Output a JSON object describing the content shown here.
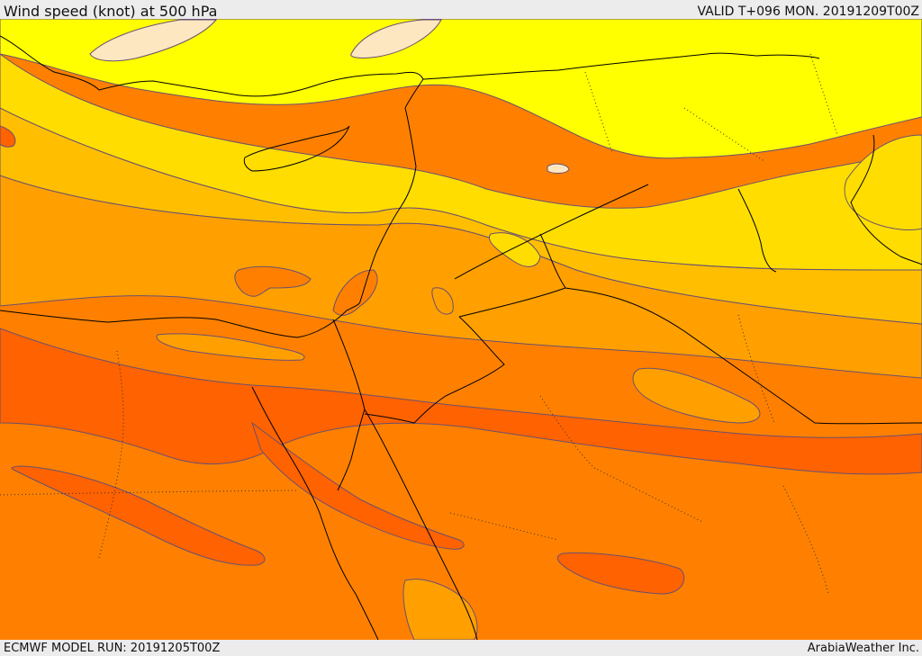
{
  "header": {
    "title": "Wind speed (knot) at 500 hPa",
    "valid_time": "VALID T+096 MON. 20191209T00Z"
  },
  "footer": {
    "model_run": "ECMWF MODEL RUN: 20191205T00Z",
    "credit": "ArabiaWeather Inc."
  },
  "map": {
    "field": "wind speed",
    "level": "500 hPa",
    "unit": "knot",
    "colors": {
      "band_1": "#fde7c0",
      "band_2": "#ffff00",
      "band_3": "#ffdd00",
      "band_4": "#ffbf00",
      "band_5": "#ffa000",
      "band_6": "#ff8000",
      "band_7": "#ff6200",
      "coastline": "#000000",
      "border": "#000000",
      "contour": "#5a4a6a"
    }
  }
}
